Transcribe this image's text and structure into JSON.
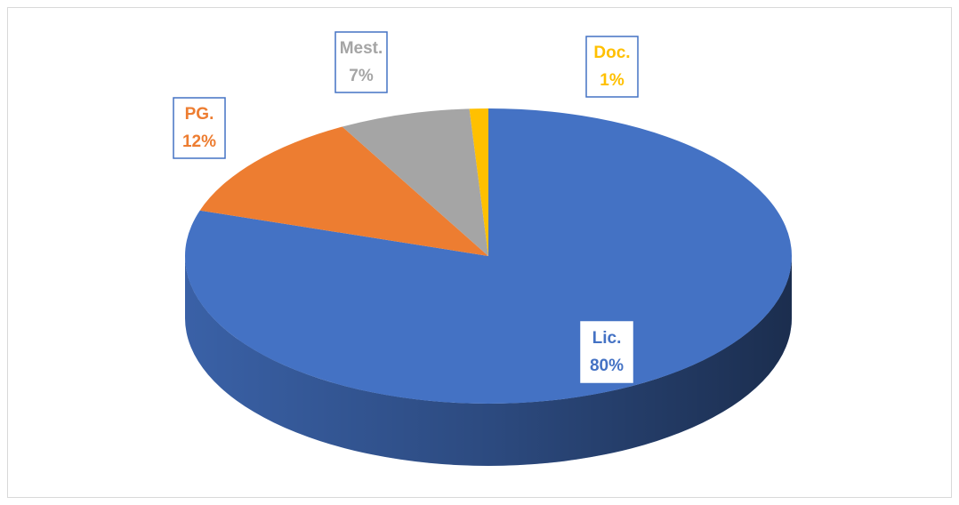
{
  "chart_data": {
    "type": "pie3d",
    "categories": [
      "Lic.",
      "PG.",
      "Mest.",
      "Doc."
    ],
    "values": [
      80,
      12,
      7,
      1
    ],
    "value_labels": [
      "80%",
      "12%",
      "7%",
      "1%"
    ],
    "colors": [
      "#4472c4",
      "#ed7d31",
      "#a5a5a5",
      "#ffc000"
    ]
  }
}
